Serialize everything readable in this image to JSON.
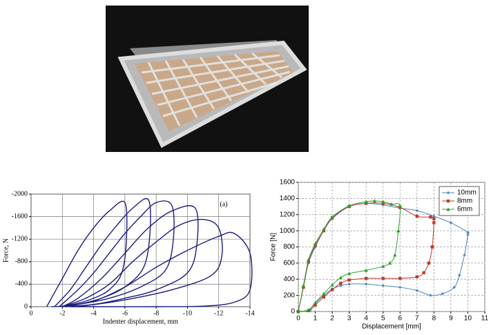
{
  "chart_data": [
    {
      "type": "line",
      "annotation": "(a)",
      "x_label": "Indenter displacement, mm",
      "y_label": "Force, N",
      "xlim": [
        0,
        -14
      ],
      "xticks": [
        0,
        -2,
        -4,
        -6,
        -8,
        -10,
        -12,
        -14
      ],
      "ylim": [
        0,
        -2000
      ],
      "yticks": [
        0,
        -400,
        -800,
        -1200,
        -1600,
        -2000
      ],
      "grid": true,
      "series": [
        {
          "color": "#1a1a80",
          "x": [
            -1,
            -2,
            -3,
            -4,
            -5,
            -6,
            -6.1,
            -5.8,
            -5,
            -4,
            -3,
            -2,
            -1.3
          ],
          "values": [
            0,
            -500,
            -1000,
            -1400,
            -1700,
            -1850,
            -1200,
            -600,
            -300,
            -150,
            -60,
            -10,
            0
          ]
        },
        {
          "color": "#1a1a80",
          "x": [
            -1.5,
            -2.5,
            -3.5,
            -4.5,
            -5.5,
            -6.5,
            -7.5,
            -7.6,
            -7.2,
            -6,
            -4.5,
            -3,
            -2
          ],
          "values": [
            0,
            -300,
            -700,
            -1100,
            -1450,
            -1750,
            -1900,
            -1300,
            -700,
            -350,
            -150,
            -40,
            0
          ]
        },
        {
          "color": "#1a1a80",
          "x": [
            -1.8,
            -3,
            -4,
            -5,
            -6,
            -7,
            -8,
            -9,
            -9.1,
            -8.6,
            -7,
            -5,
            -3,
            -2
          ],
          "values": [
            0,
            -300,
            -600,
            -950,
            -1300,
            -1600,
            -1850,
            -1800,
            -1200,
            -650,
            -350,
            -150,
            -40,
            0
          ]
        },
        {
          "color": "#1a1a80",
          "x": [
            -2,
            -3,
            -4.5,
            -6,
            -7.5,
            -9,
            -10.5,
            -10.6,
            -10,
            -8,
            -6,
            -4,
            -2.2
          ],
          "values": [
            0,
            -150,
            -500,
            -950,
            -1400,
            -1700,
            -1750,
            -1100,
            -600,
            -300,
            -150,
            -40,
            0
          ]
        },
        {
          "color": "#1a1a80",
          "x": [
            -2,
            -3.5,
            -5,
            -6.5,
            -8,
            -9.5,
            -11,
            -12,
            -12.2,
            -11.5,
            -9,
            -6,
            -3.5,
            -2.2
          ],
          "values": [
            0,
            -150,
            -400,
            -800,
            -1150,
            -1450,
            -1550,
            -1400,
            -900,
            -550,
            -300,
            -120,
            -20,
            0
          ]
        },
        {
          "color": "#1a1a80",
          "x": [
            -2,
            -4,
            -6,
            -8,
            -10,
            -12,
            -13,
            -14,
            -14,
            -13,
            -11,
            -8,
            -5,
            -2.5
          ],
          "values": [
            0,
            -100,
            -350,
            -700,
            -1000,
            -1250,
            -1300,
            -950,
            -300,
            -80,
            -10,
            0,
            0,
            0
          ]
        }
      ]
    },
    {
      "type": "line",
      "x_label": "Displacement [mm]",
      "y_label": "Force [N]",
      "xlim": [
        0,
        11
      ],
      "xticks": [
        0,
        1,
        2,
        3,
        4,
        5,
        6,
        7,
        8,
        9,
        10,
        11
      ],
      "ylim": [
        0,
        1600
      ],
      "yticks": [
        0,
        200,
        400,
        600,
        800,
        1000,
        1200,
        1400,
        1600
      ],
      "grid": true,
      "legend": "upper right",
      "series": [
        {
          "name": "10mm",
          "color": "#4f81bd",
          "marker": "diamond",
          "x": [
            0,
            0.3,
            0.6,
            1,
            1.5,
            2,
            3,
            4,
            5,
            6,
            7,
            8,
            9,
            10,
            10,
            9.8,
            9.5,
            9.2,
            8.5,
            7.8,
            7,
            6,
            5,
            4,
            3,
            2.5,
            2,
            1.5,
            1,
            0.7,
            0
          ],
          "values": [
            0,
            300,
            600,
            800,
            1000,
            1150,
            1300,
            1340,
            1320,
            1280,
            1250,
            1180,
            1100,
            980,
            950,
            700,
            450,
            300,
            220,
            200,
            260,
            300,
            320,
            340,
            340,
            320,
            280,
            200,
            100,
            20,
            0
          ]
        },
        {
          "name": "8mm",
          "color": "#c0392b",
          "marker": "square",
          "x": [
            0,
            0.3,
            0.6,
            1,
            1.5,
            2,
            3,
            4,
            5,
            6,
            7,
            7.8,
            8,
            8,
            7.9,
            7.7,
            7.4,
            7,
            6,
            5,
            4,
            3,
            2.5,
            2,
            1.5,
            1,
            0.6,
            0
          ],
          "values": [
            0,
            300,
            620,
            820,
            1000,
            1160,
            1300,
            1340,
            1340,
            1290,
            1180,
            1170,
            1150,
            1100,
            800,
            600,
            480,
            430,
            410,
            410,
            410,
            390,
            350,
            270,
            180,
            80,
            10,
            0
          ]
        },
        {
          "name": "6mm",
          "color": "#2ca02c",
          "marker": "triangle",
          "x": [
            0,
            0.3,
            0.6,
            1,
            1.5,
            2,
            3,
            4,
            4.5,
            5,
            5.5,
            6,
            5.9,
            5.7,
            5.4,
            5,
            4,
            3,
            2.5,
            2,
            1.5,
            1,
            0.6,
            0
          ],
          "values": [
            0,
            320,
            640,
            840,
            1020,
            1170,
            1310,
            1360,
            1370,
            1360,
            1330,
            1310,
            1000,
            700,
            600,
            560,
            510,
            470,
            420,
            330,
            220,
            110,
            20,
            0
          ]
        }
      ]
    }
  ]
}
